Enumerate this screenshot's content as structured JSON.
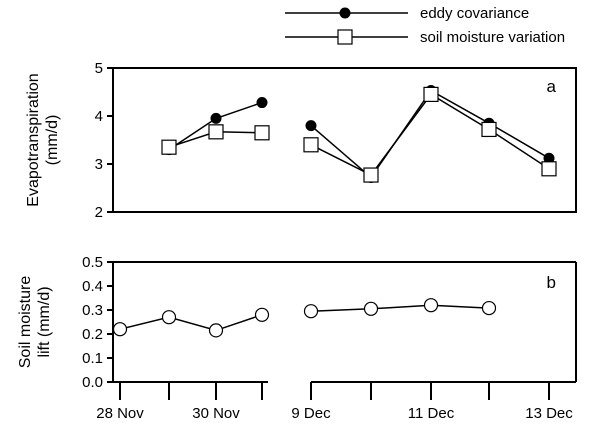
{
  "chart_data": [
    {
      "panel": "a",
      "type": "line",
      "ylabel_lines": [
        "Evapotranspiration",
        "(mm/d)"
      ],
      "ylim": [
        2,
        5
      ],
      "yticks": [
        2,
        3,
        4,
        5
      ],
      "series": [
        {
          "name": "eddy covariance",
          "marker": "filled-circle",
          "segments": [
            [
              [
                "29 Nov",
                3.3
              ],
              [
                "30 Nov",
                3.95
              ],
              [
                "1 Dec",
                4.28
              ]
            ],
            [
              [
                "9 Dec",
                3.8
              ],
              [
                "10 Dec",
                2.72
              ],
              [
                "11 Dec",
                4.53
              ],
              [
                "12 Dec",
                3.85
              ],
              [
                "13 Dec",
                3.12
              ]
            ]
          ]
        },
        {
          "name": "soil moisture variation",
          "marker": "open-square",
          "segments": [
            [
              [
                "29 Nov",
                3.35
              ],
              [
                "30 Nov",
                3.67
              ],
              [
                "1 Dec",
                3.65
              ]
            ],
            [
              [
                "9 Dec",
                3.4
              ],
              [
                "10 Dec",
                2.77
              ],
              [
                "11 Dec",
                4.45
              ],
              [
                "12 Dec",
                3.72
              ],
              [
                "13 Dec",
                2.9
              ]
            ]
          ]
        }
      ],
      "legend": {
        "placement": "top-right"
      }
    },
    {
      "panel": "b",
      "type": "line",
      "ylabel_lines": [
        "Soil moisture",
        "lift (mm/d)"
      ],
      "ylim": [
        0,
        0.5
      ],
      "yticks": [
        "0.0",
        "0.1",
        "0.2",
        "0.3",
        "0.4",
        "0.5"
      ],
      "series": [
        {
          "marker": "open-circle",
          "segments": [
            [
              [
                "28 Nov",
                0.22
              ],
              [
                "29 Nov",
                0.27
              ],
              [
                "30 Nov",
                0.215
              ],
              [
                "1 Dec",
                0.28
              ]
            ],
            [
              [
                "9 Dec",
                0.295
              ],
              [
                "10 Dec",
                0.305
              ],
              [
                "11 Dec",
                0.32
              ],
              [
                "12 Dec",
                0.308
              ]
            ]
          ]
        }
      ],
      "xtick_labels": [
        {
          "at": "28 Nov",
          "label": "28 Nov"
        },
        {
          "at": "30 Nov",
          "label": "30 Nov"
        },
        {
          "at": "9 Dec",
          "label": "9 Dec"
        },
        {
          "at": "11 Dec",
          "label": "11 Dec"
        },
        {
          "at": "13 Dec",
          "label": "13 Dec"
        }
      ],
      "x_axis_break": [
        "1 Dec",
        "9 Dec"
      ]
    }
  ]
}
